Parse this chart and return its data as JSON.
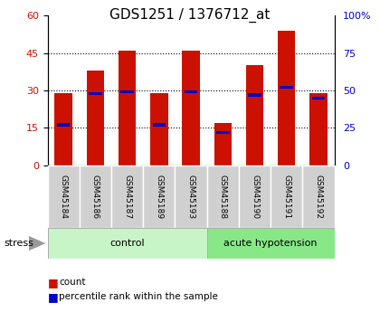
{
  "title": "GDS1251 / 1376712_at",
  "samples": [
    "GSM45184",
    "GSM45186",
    "GSM45187",
    "GSM45189",
    "GSM45193",
    "GSM45188",
    "GSM45190",
    "GSM45191",
    "GSM45192"
  ],
  "counts": [
    29,
    38,
    46,
    29,
    46,
    17,
    40,
    54,
    29
  ],
  "percentiles": [
    27,
    48,
    49,
    27,
    49,
    22,
    47,
    52,
    45
  ],
  "group_colors": {
    "control": "#c8f5c8",
    "acute hypotension": "#88e888"
  },
  "bar_color": "#cc1100",
  "percentile_color": "#0000cc",
  "ylim_left": [
    0,
    60
  ],
  "ylim_right": [
    0,
    100
  ],
  "yticks_left": [
    0,
    15,
    30,
    45,
    60
  ],
  "yticks_right": [
    0,
    25,
    50,
    75,
    100
  ],
  "title_fontsize": 11,
  "bar_width": 0.55,
  "n_control": 5,
  "n_acute": 4
}
